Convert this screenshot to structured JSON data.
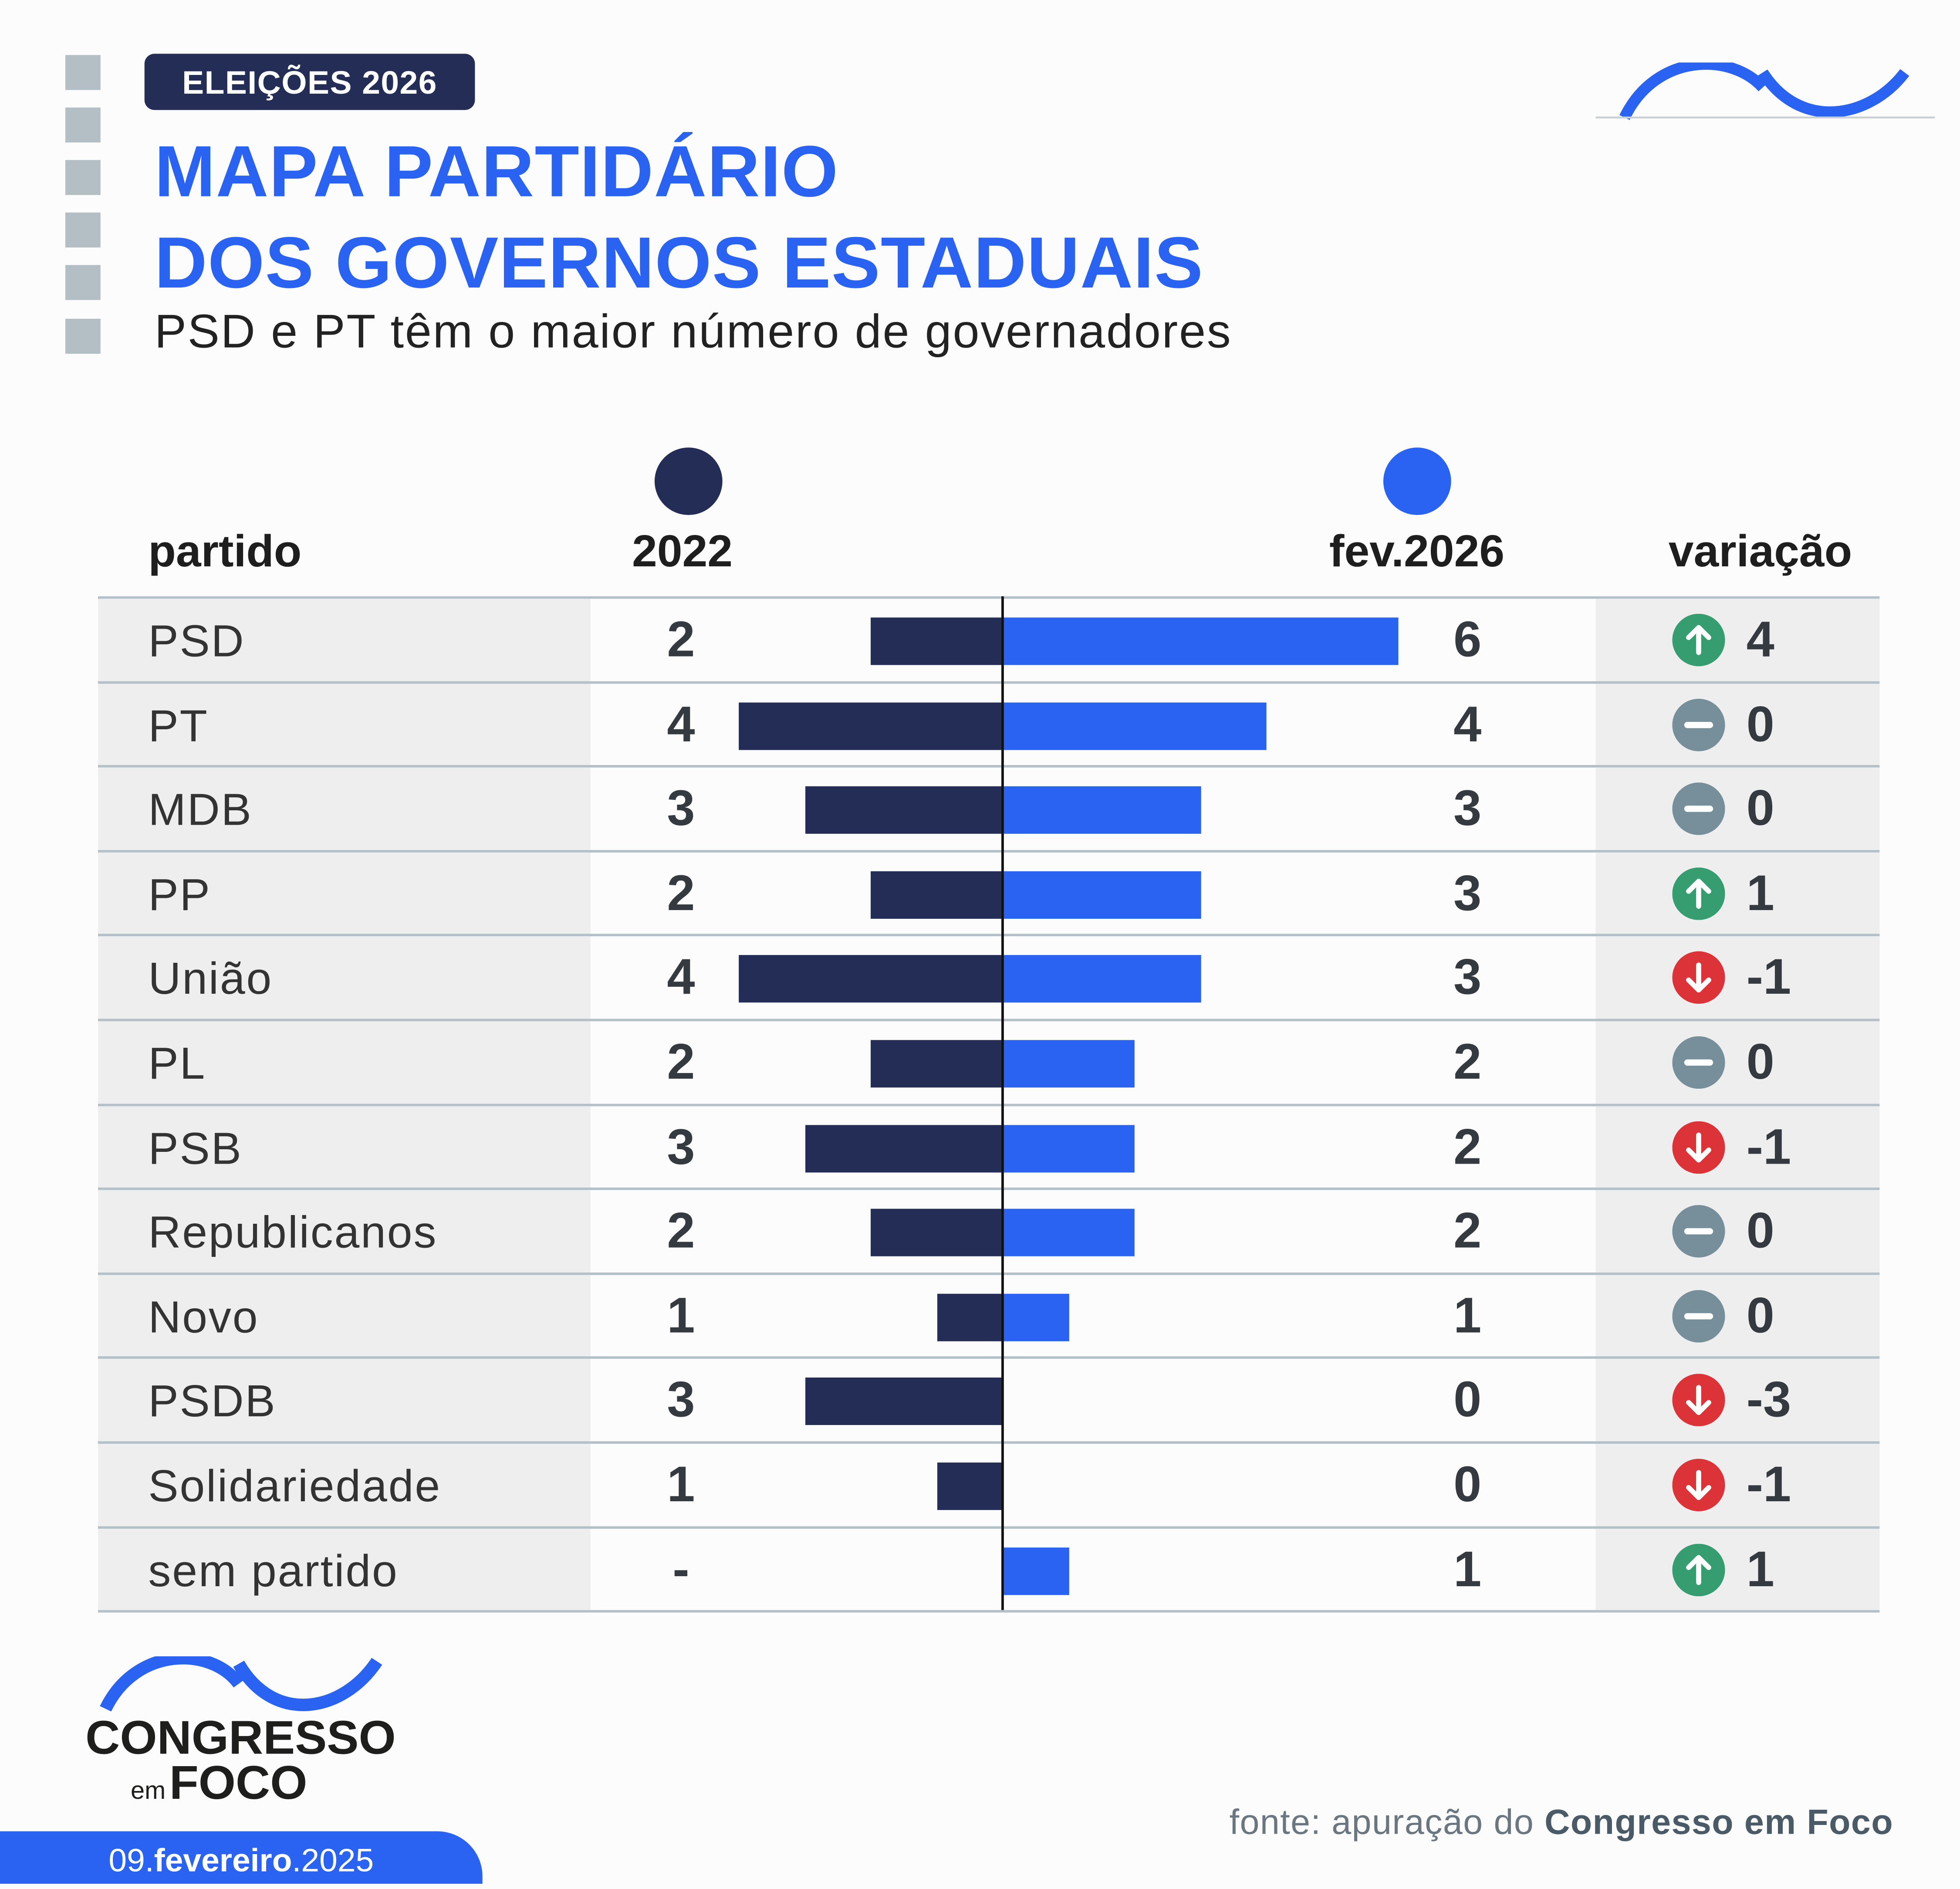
{
  "header": {
    "badge": "ELEIÇÕES 2026",
    "title_line1": "MAPA PARTIDÁRIO",
    "title_line2": "DOS GOVERNOS ESTADUAIS",
    "subtitle": "PSD e PT têm o maior número de governadores"
  },
  "colors": {
    "navy": "#232d55",
    "blue": "#2a63f2",
    "up": "#359d6f",
    "flat": "#778f9a",
    "down": "#dc3338"
  },
  "chart_data": {
    "type": "bar",
    "title": "MAPA PARTIDÁRIO DOS GOVERNOS ESTADUAIS",
    "columns": {
      "party": "partido",
      "before": "2022",
      "after": "fev.2026",
      "change": "variação"
    },
    "series": [
      {
        "name": "2022",
        "color": "#232d55"
      },
      {
        "name": "fev.2026",
        "color": "#2a63f2"
      }
    ],
    "rows": [
      {
        "party": "PSD",
        "before": 2,
        "before_label": "2",
        "after": 6,
        "after_label": "6",
        "change": "4",
        "trend": "up"
      },
      {
        "party": "PT",
        "before": 4,
        "before_label": "4",
        "after": 4,
        "after_label": "4",
        "change": "0",
        "trend": "flat"
      },
      {
        "party": "MDB",
        "before": 3,
        "before_label": "3",
        "after": 3,
        "after_label": "3",
        "change": "0",
        "trend": "flat"
      },
      {
        "party": "PP",
        "before": 2,
        "before_label": "2",
        "after": 3,
        "after_label": "3",
        "change": "1",
        "trend": "up"
      },
      {
        "party": "União",
        "before": 4,
        "before_label": "4",
        "after": 3,
        "after_label": "3",
        "change": "-1",
        "trend": "down"
      },
      {
        "party": "PL",
        "before": 2,
        "before_label": "2",
        "after": 2,
        "after_label": "2",
        "change": "0",
        "trend": "flat"
      },
      {
        "party": "PSB",
        "before": 3,
        "before_label": "3",
        "after": 2,
        "after_label": "2",
        "change": "-1",
        "trend": "down"
      },
      {
        "party": "Republicanos",
        "before": 2,
        "before_label": "2",
        "after": 2,
        "after_label": "2",
        "change": "0",
        "trend": "flat"
      },
      {
        "party": "Novo",
        "before": 1,
        "before_label": "1",
        "after": 1,
        "after_label": "1",
        "change": "0",
        "trend": "flat"
      },
      {
        "party": "PSDB",
        "before": 3,
        "before_label": "3",
        "after": 0,
        "after_label": "0",
        "change": "-3",
        "trend": "down"
      },
      {
        "party": "Solidariedade",
        "before": 1,
        "before_label": "1",
        "after": 0,
        "after_label": "0",
        "change": "-1",
        "trend": "down"
      },
      {
        "party": "sem partido",
        "before": 0,
        "before_label": "-",
        "after": 1,
        "after_label": "1",
        "change": "1",
        "trend": "up"
      }
    ],
    "xlim": [
      -6,
      6
    ]
  },
  "footer": {
    "source_prefix": "fonte: apuração do ",
    "source_bold": "Congresso em Foco",
    "logo_line1": "CONGRESSO",
    "logo_em": "em",
    "logo_foco": "FOCO",
    "date_day": "09.",
    "date_month": "fevereiro",
    "date_year": ".2025"
  }
}
